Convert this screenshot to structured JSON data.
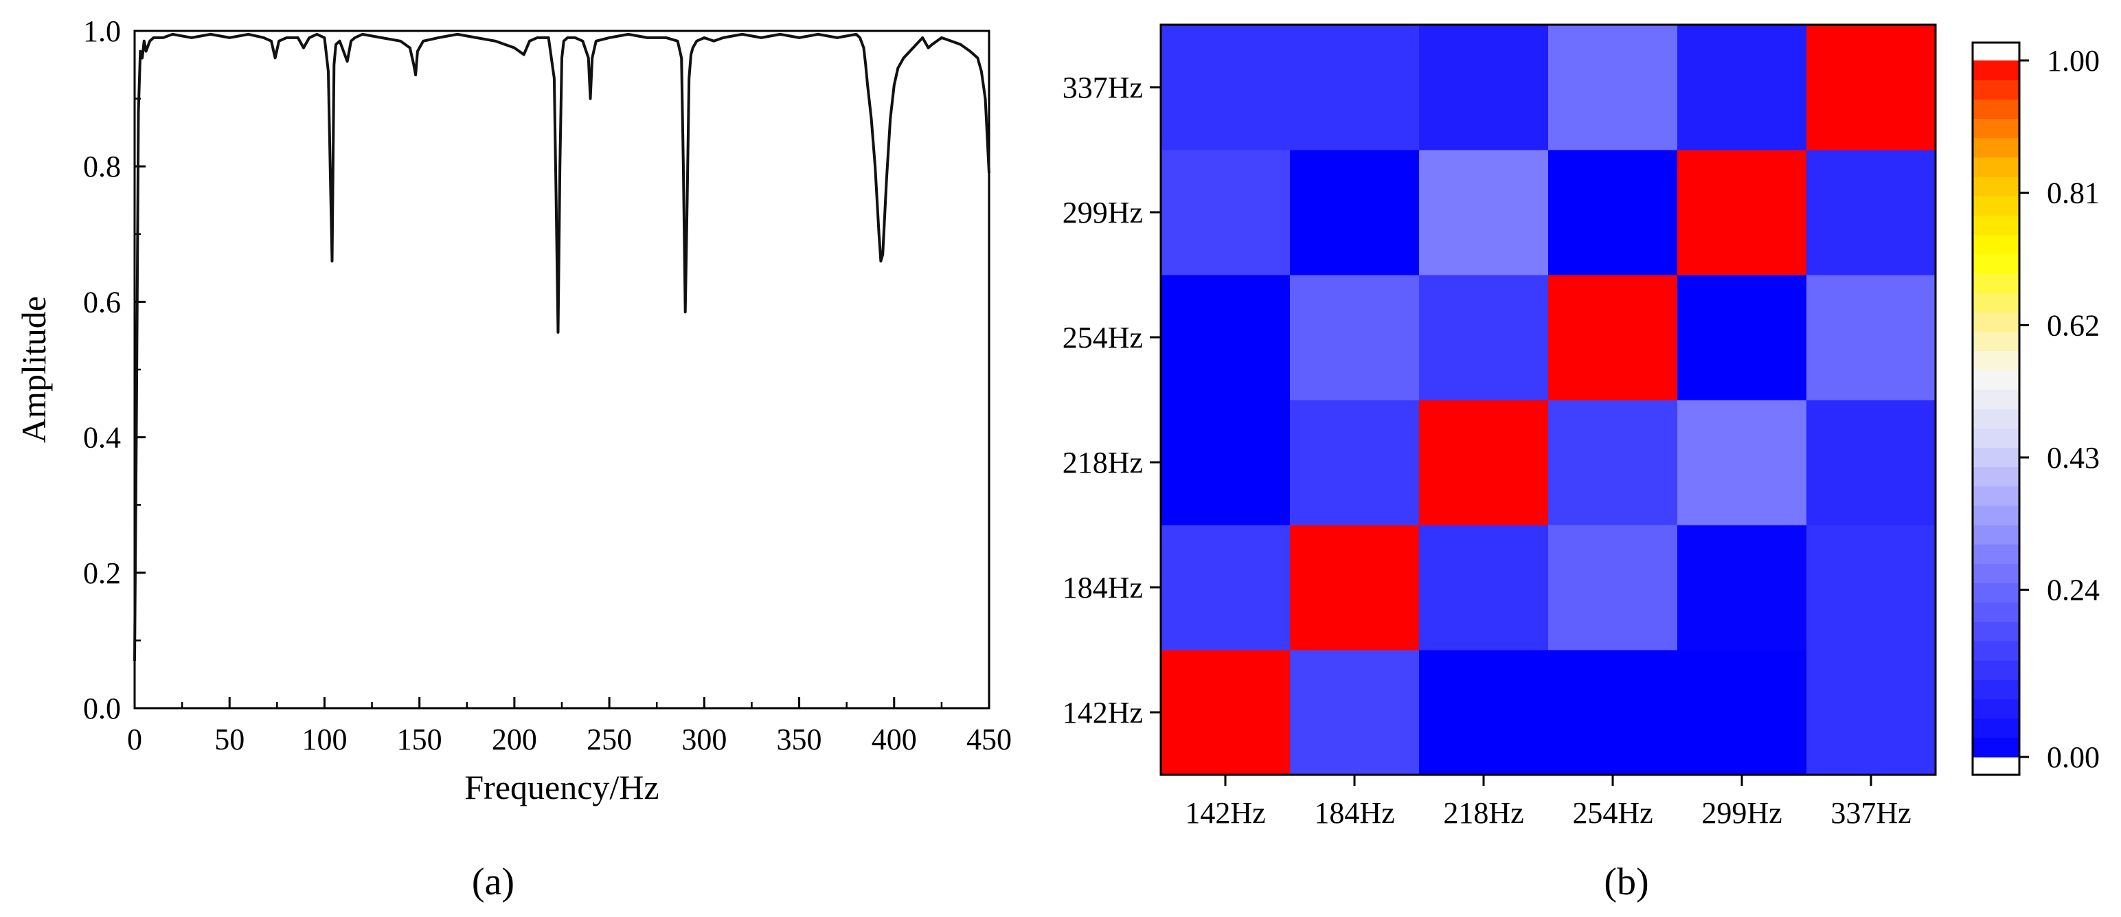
{
  "chart_data": [
    {
      "type": "line",
      "panel_label": "(a)",
      "xlabel": "Frequency/Hz",
      "ylabel": "Amplitude",
      "xlim": [
        0,
        450
      ],
      "ylim": [
        0,
        1.0
      ],
      "xticks": [
        0,
        50,
        100,
        150,
        200,
        250,
        300,
        350,
        400,
        450
      ],
      "yticks": [
        0.0,
        0.2,
        0.4,
        0.6,
        0.8,
        1.0
      ],
      "xtick_labels": [
        "0",
        "50",
        "100",
        "150",
        "200",
        "250",
        "300",
        "350",
        "400",
        "450"
      ],
      "ytick_labels": [
        "0.0",
        "0.2",
        "0.4",
        "0.6",
        "0.8",
        "1.0"
      ],
      "grid": false,
      "line_color": "#111111",
      "series": [
        {
          "x": [
            0,
            1,
            2,
            3,
            4,
            5,
            6,
            8,
            10,
            15,
            20,
            30,
            40,
            50,
            60,
            68,
            72,
            74,
            76,
            80,
            86,
            89,
            92,
            96,
            100,
            102,
            103,
            104,
            105,
            106,
            108,
            110,
            112,
            114,
            116,
            120,
            130,
            140,
            145,
            147,
            148,
            149,
            152,
            160,
            170,
            180,
            190,
            200,
            205,
            208,
            212,
            218,
            221,
            222,
            223,
            224,
            225,
            226,
            228,
            232,
            236,
            239,
            240,
            241,
            243,
            250,
            260,
            270,
            280,
            286,
            288,
            289,
            290,
            291,
            292,
            293,
            294,
            296,
            300,
            305,
            310,
            320,
            330,
            340,
            350,
            360,
            370,
            380,
            382,
            384,
            385,
            386,
            388,
            390,
            392,
            393,
            394,
            396,
            398,
            400,
            402,
            405,
            410,
            415,
            418,
            420,
            425,
            430,
            435,
            440,
            444,
            446,
            448,
            450
          ],
          "y": [
            0.07,
            0.45,
            0.88,
            0.97,
            0.96,
            0.985,
            0.97,
            0.985,
            0.99,
            0.99,
            0.995,
            0.99,
            0.995,
            0.99,
            0.995,
            0.99,
            0.985,
            0.96,
            0.985,
            0.99,
            0.99,
            0.975,
            0.99,
            0.995,
            0.99,
            0.94,
            0.8,
            0.66,
            0.95,
            0.98,
            0.985,
            0.97,
            0.955,
            0.985,
            0.99,
            0.995,
            0.99,
            0.985,
            0.975,
            0.95,
            0.935,
            0.97,
            0.985,
            0.99,
            0.995,
            0.99,
            0.985,
            0.975,
            0.965,
            0.985,
            0.99,
            0.99,
            0.93,
            0.75,
            0.555,
            0.8,
            0.96,
            0.985,
            0.99,
            0.99,
            0.985,
            0.96,
            0.9,
            0.96,
            0.985,
            0.99,
            0.995,
            0.99,
            0.99,
            0.985,
            0.96,
            0.8,
            0.585,
            0.75,
            0.93,
            0.965,
            0.975,
            0.985,
            0.99,
            0.985,
            0.99,
            0.995,
            0.99,
            0.995,
            0.99,
            0.995,
            0.99,
            0.995,
            0.99,
            0.975,
            0.95,
            0.92,
            0.87,
            0.8,
            0.7,
            0.66,
            0.67,
            0.78,
            0.87,
            0.92,
            0.945,
            0.96,
            0.975,
            0.99,
            0.975,
            0.98,
            0.99,
            0.985,
            0.98,
            0.97,
            0.96,
            0.94,
            0.9,
            0.79
          ]
        }
      ]
    },
    {
      "type": "heatmap",
      "panel_label": "(b)",
      "x_categories": [
        "142Hz",
        "184Hz",
        "218Hz",
        "254Hz",
        "299Hz",
        "337Hz"
      ],
      "y_categories": [
        "142Hz",
        "184Hz",
        "218Hz",
        "254Hz",
        "299Hz",
        "337Hz"
      ],
      "values": [
        [
          1.0,
          0.16,
          0.0,
          0.0,
          0.0,
          0.12
        ],
        [
          0.14,
          1.0,
          0.12,
          0.22,
          0.01,
          0.12
        ],
        [
          0.0,
          0.14,
          1.0,
          0.15,
          0.27,
          0.1
        ],
        [
          0.0,
          0.22,
          0.14,
          1.0,
          0.0,
          0.24
        ],
        [
          0.16,
          0.0,
          0.28,
          0.0,
          1.0,
          0.1
        ],
        [
          0.12,
          0.12,
          0.07,
          0.25,
          0.07,
          1.0
        ]
      ],
      "colorbar": {
        "min": 0.0,
        "max": 1.0,
        "ticks": [
          0.0,
          0.24,
          0.43,
          0.62,
          0.81,
          1.0
        ],
        "tick_labels": [
          "0.00",
          "0.24",
          "0.43",
          "0.62",
          "0.81",
          "1.00"
        ],
        "color_stops": [
          {
            "v": 0.0,
            "color": "#0000ff"
          },
          {
            "v": 0.14,
            "color": "#3b3bff"
          },
          {
            "v": 0.3,
            "color": "#8585ff"
          },
          {
            "v": 0.45,
            "color": "#d6d6fa"
          },
          {
            "v": 0.55,
            "color": "#f8f8f2"
          },
          {
            "v": 0.63,
            "color": "#ffef8a"
          },
          {
            "v": 0.72,
            "color": "#ffff00"
          },
          {
            "v": 0.84,
            "color": "#ffbe00"
          },
          {
            "v": 0.92,
            "color": "#ff6a00"
          },
          {
            "v": 1.0,
            "color": "#ff0000"
          }
        ]
      }
    }
  ]
}
